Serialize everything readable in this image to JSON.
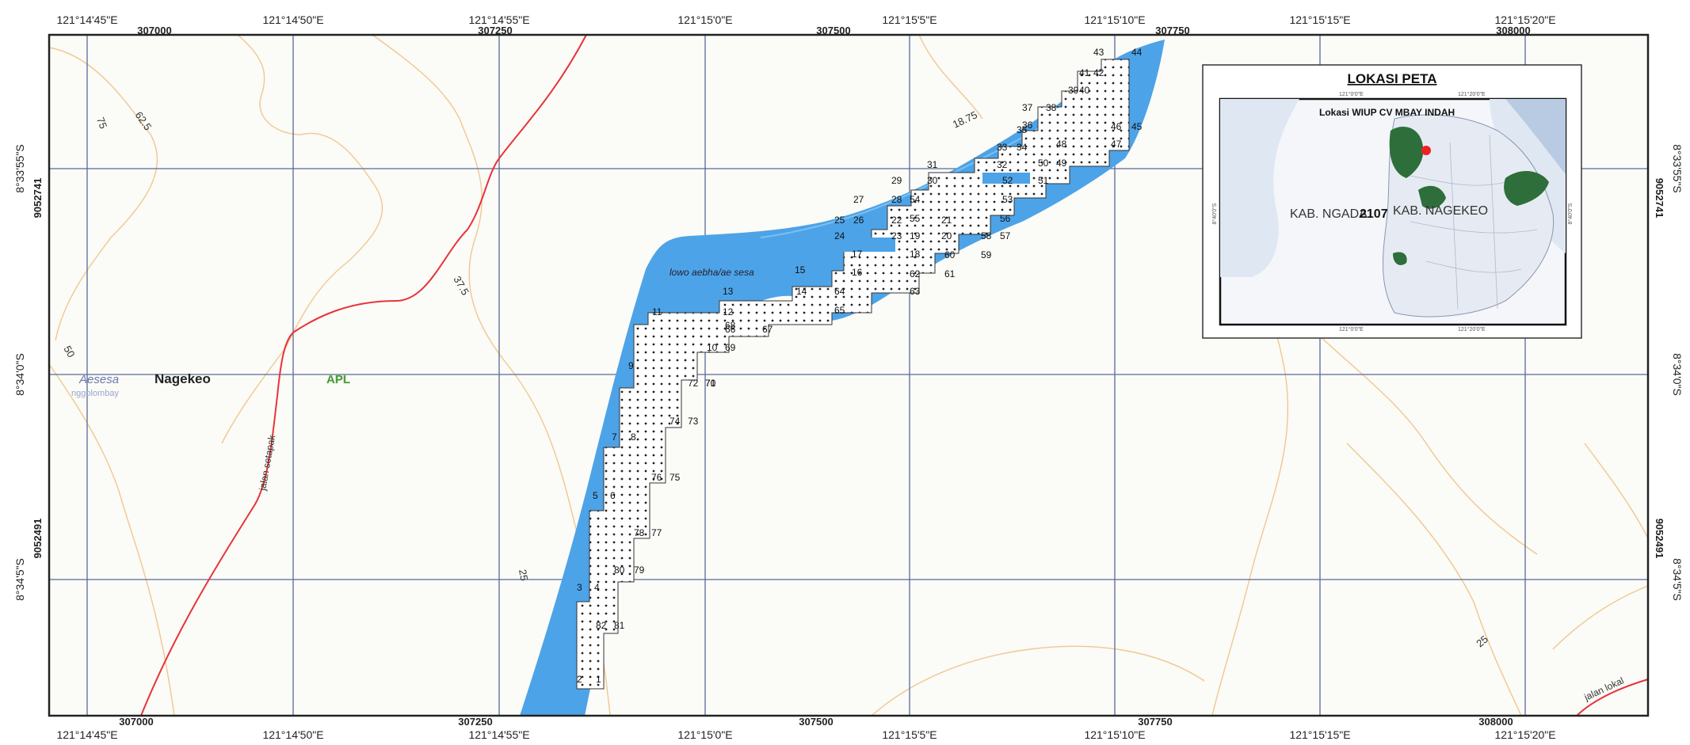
{
  "top_lon_ticks": [
    "121°14'45\"E",
    "121°14'50\"E",
    "121°14'55\"E",
    "121°15'0\"E",
    "121°15'5\"E",
    "121°15'10\"E",
    "121°15'15\"E",
    "121°15'20\"E"
  ],
  "bottom_lon_ticks": [
    "121°14'45\"E",
    "121°14'50\"E",
    "121°14'55\"E",
    "121°15'0\"E",
    "121°15'5\"E",
    "121°15'10\"E",
    "121°15'15\"E",
    "121°15'20\"E"
  ],
  "top_easting_ticks": [
    "307000",
    "307250",
    "307500",
    "307750",
    "308000"
  ],
  "bottom_easting_ticks": [
    "307000",
    "307250",
    "307500",
    "307750",
    "308000"
  ],
  "left_lat_ticks": [
    "8°33'55\"S",
    "8°34'0\"S",
    "8°34'5\"S"
  ],
  "right_lat_ticks": [
    "8°33'55\"S",
    "8°34'0\"S",
    "8°34'5\"S"
  ],
  "northing_ticks": [
    "9052741",
    "9052491"
  ],
  "contour_labels": [
    "75",
    "62.5",
    "50",
    "37.5",
    "25",
    "18.75",
    "25"
  ],
  "place_labels": {
    "aesesa": "Aesesa",
    "nggolombay": "nggolombay",
    "nagekeo": "Nagekeo",
    "apl": "APL"
  },
  "road_labels": {
    "setapak": "jalan setapak",
    "lokal": "jalan lokal"
  },
  "river_label": "lowo aebha/ae sesa",
  "boundary_points": [
    "1",
    "2",
    "3",
    "4",
    "5",
    "6",
    "7",
    "8",
    "9",
    "10",
    "11",
    "12",
    "13",
    "14",
    "15",
    "16",
    "17",
    "18",
    "19",
    "20",
    "21",
    "22",
    "23",
    "24",
    "25",
    "26",
    "27",
    "28",
    "29",
    "30",
    "31",
    "32",
    "33",
    "34",
    "35",
    "36",
    "37",
    "38",
    "39",
    "40",
    "41",
    "42",
    "43",
    "44",
    "45",
    "46",
    "47",
    "48",
    "49",
    "50",
    "51",
    "52",
    "53",
    "54",
    "55",
    "56",
    "57",
    "58",
    "59",
    "60",
    "61",
    "62",
    "63",
    "64",
    "65",
    "66",
    "67",
    "68",
    "69",
    "70",
    "71",
    "72",
    "73",
    "74",
    "75",
    "76",
    "77",
    "78",
    "79",
    "80",
    "81",
    "82"
  ],
  "inset": {
    "title": "LOKASI PETA",
    "wiup_label": "Lokasi WIUP CV MBAY INDAH",
    "ngada_label": "KAB. NGADA",
    "code": "2107",
    "nagekeo_label": "KAB. NAGEKEO",
    "top_tick_1": "121°0'0\"E",
    "top_tick_2": "121°20'0\"E",
    "bottom_tick_1": "121°0'0\"E",
    "bottom_tick_2": "121°20'0\"E",
    "side_tick": "8°40'0\"S"
  },
  "colors": {
    "river": "#4da3e8",
    "road": "#e8333a",
    "contour": "#f0c890",
    "grid": "#5a6a9a",
    "frame": "#222222",
    "apl": "#3a8a2a",
    "mine_area": "#2e6e3a",
    "location_marker": "#ee2222"
  }
}
